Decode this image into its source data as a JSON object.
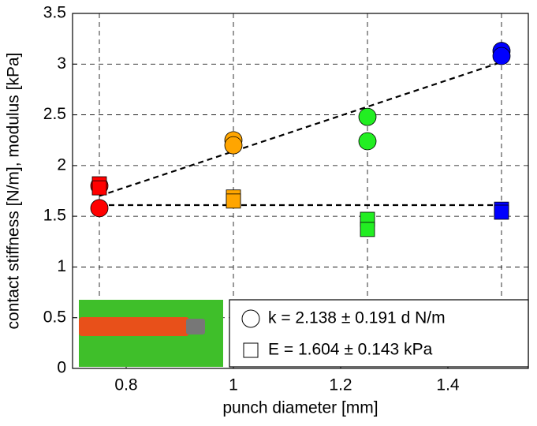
{
  "chart_data": {
    "type": "scatter",
    "xlabel": "punch diameter [mm]",
    "ylabel": "contact stiffness [N/m], modulus [kPa]",
    "xlim": [
      0.7,
      1.55
    ],
    "ylim": [
      0,
      3.5
    ],
    "xticks": [
      0.8,
      1,
      1.2,
      1.4
    ],
    "yticks": [
      0,
      0.5,
      1,
      1.5,
      2,
      2.5,
      3,
      3.5
    ],
    "xgrid": [
      0.75,
      1,
      1.25,
      1.5
    ],
    "grid": true,
    "series": [
      {
        "name": "k  = 2.138 ± 0.191 d  N/m",
        "marker": "circle",
        "x": [
          0.75,
          0.75,
          1,
          1,
          1.25,
          1.25,
          1.5,
          1.5
        ],
        "values": [
          1.8,
          1.58,
          2.25,
          2.2,
          2.48,
          2.24,
          3.13,
          3.08
        ],
        "colors": [
          "#ff0000",
          "#ff0000",
          "#ffa500",
          "#ffa500",
          "#22ee22",
          "#22ee22",
          "#0000ff",
          "#0000ff"
        ]
      },
      {
        "name": "E = 1.604 ± 0.143 kPa",
        "marker": "square",
        "x": [
          0.75,
          0.75,
          1,
          1,
          1.25,
          1.25,
          1.5,
          1.5
        ],
        "values": [
          1.82,
          1.78,
          1.69,
          1.65,
          1.47,
          1.37,
          1.57,
          1.54
        ],
        "colors": [
          "#ff0000",
          "#ff0000",
          "#ffa500",
          "#ffa500",
          "#22ee22",
          "#22ee22",
          "#0000ff",
          "#0000ff"
        ]
      }
    ],
    "fits": [
      {
        "x": [
          0.75,
          1.5
        ],
        "values": [
          1.7,
          3.02
        ]
      },
      {
        "x": [
          0.75,
          1.5
        ],
        "values": [
          1.61,
          1.61
        ]
      }
    ]
  }
}
